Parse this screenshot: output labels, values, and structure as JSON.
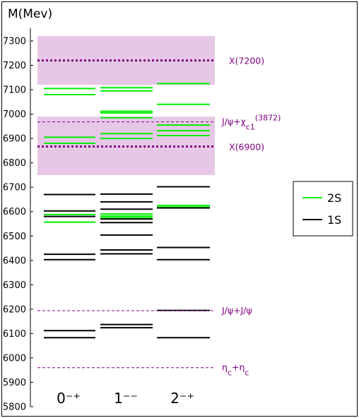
{
  "chart_data": {
    "type": "level-diagram",
    "ylabel": "M(Mev)",
    "ylim": [
      5800,
      7350
    ],
    "yticks": [
      5800,
      5900,
      6000,
      6100,
      6200,
      6300,
      6400,
      6500,
      6600,
      6700,
      6800,
      6900,
      7000,
      7100,
      7200,
      7300
    ],
    "categories": [
      "0⁻⁺",
      "1⁻⁻",
      "2⁻⁺"
    ],
    "bands": [
      {
        "from": 6750,
        "to": 6990,
        "color": "#e6c8e6"
      },
      {
        "from": 7120,
        "to": 7320,
        "color": "#e6c8e6"
      }
    ],
    "thick_lines": [
      {
        "label": "X(7200)",
        "value": 7220,
        "color": "#800080"
      },
      {
        "label": "X(6900)",
        "value": 6867,
        "color": "#800080"
      }
    ],
    "thresholds": [
      {
        "label": "J/ψ+χ",
        "sub": "c1",
        "suffix": "(3872)",
        "value": 6968,
        "color": "#800080"
      },
      {
        "label": "J/ψ+J/ψ",
        "sub": "",
        "suffix": "",
        "value": 6194,
        "color": "#800080"
      },
      {
        "label": "η",
        "sub": "c",
        "mid": "+η",
        "sub2": "c",
        "value": 5960,
        "color": "#800080"
      }
    ],
    "series": [
      {
        "name": "2S",
        "color": "#00ee00",
        "levels": [
          [
            6557,
            6588,
            6880,
            6905,
            7080,
            7105
          ],
          [
            6575,
            6582,
            6590,
            6900,
            6920,
            6985,
            7005,
            7012,
            7095,
            7108
          ],
          [
            6618,
            6625,
            6912,
            6932,
            6955,
            7040,
            7125
          ]
        ]
      },
      {
        "name": "1S",
        "color": "#000000",
        "levels": [
          [
            6083,
            6112,
            6403,
            6425,
            6580,
            6603,
            6670
          ],
          [
            6124,
            6137,
            6427,
            6443,
            6555,
            6570,
            6504,
            6610,
            6640,
            6672
          ],
          [
            6083,
            6195,
            6403,
            6453,
            6615,
            6702
          ]
        ]
      }
    ],
    "legend": {
      "position": "right",
      "entries": [
        "2S",
        "1S"
      ]
    }
  }
}
